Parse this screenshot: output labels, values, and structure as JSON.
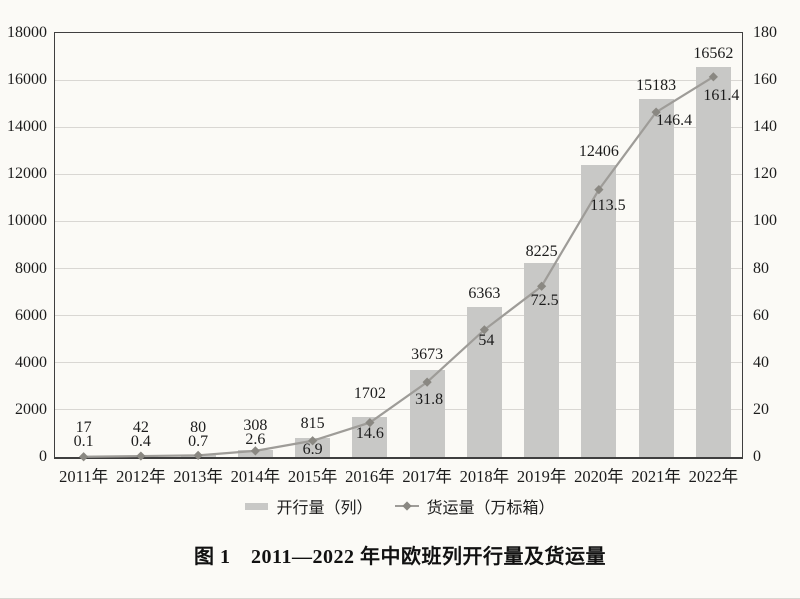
{
  "figure": {
    "caption": "图 1　2011—2022 年中欧班列开行量及货运量"
  },
  "chart_data": {
    "type": "combo",
    "categories": [
      "2011年",
      "2012年",
      "2013年",
      "2014年",
      "2015年",
      "2016年",
      "2017年",
      "2018年",
      "2019年",
      "2020年",
      "2021年",
      "2022年"
    ],
    "series": [
      {
        "name": "开行量（列）",
        "type": "bar",
        "axis": "left",
        "values": [
          17,
          42,
          80,
          308,
          815,
          1702,
          3673,
          6363,
          8225,
          12406,
          15183,
          16562
        ],
        "color": "#c8c8c6"
      },
      {
        "name": "货运量（万标箱）",
        "type": "line",
        "axis": "right",
        "values": [
          0.1,
          0.4,
          0.7,
          2.6,
          6.9,
          14.6,
          31.8,
          54,
          72.5,
          113.5,
          146.4,
          161.4
        ],
        "color": "#9e9c98",
        "marker": "diamond",
        "marker_color": "#8a8882"
      }
    ],
    "left_axis": {
      "min": 0,
      "max": 18000,
      "step": 2000,
      "ticks": [
        "0",
        "2000",
        "4000",
        "6000",
        "8000",
        "10000",
        "12000",
        "14000",
        "16000",
        "18000"
      ]
    },
    "right_axis": {
      "min": 0,
      "max": 180,
      "step": 20,
      "ticks": [
        "0",
        "20",
        "40",
        "60",
        "80",
        "100",
        "120",
        "140",
        "160",
        "180"
      ]
    },
    "grid": true,
    "legend_position": "bottom",
    "data_labels": true
  }
}
